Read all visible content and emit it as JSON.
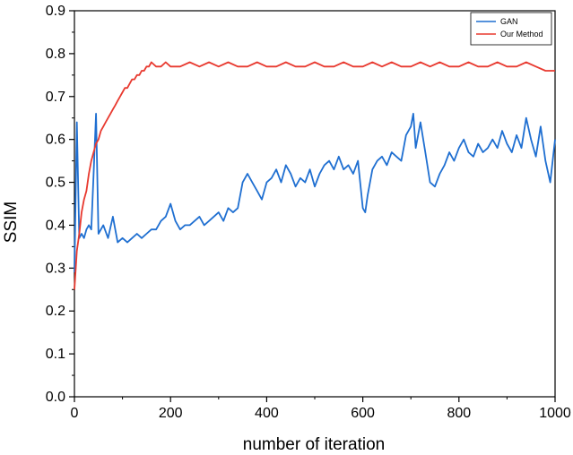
{
  "chart_data": {
    "type": "line",
    "xlabel": "number of iteration",
    "ylabel": "SSIM",
    "xlim": [
      0,
      1000
    ],
    "ylim": [
      0,
      0.9
    ],
    "x_ticks": [
      0,
      200,
      400,
      600,
      800,
      1000
    ],
    "y_ticks": [
      0.0,
      0.1,
      0.2,
      0.3,
      0.4,
      0.5,
      0.6,
      0.7,
      0.8,
      0.9
    ],
    "x_tick_labels": [
      "0",
      "200",
      "400",
      "600",
      "800",
      "1000"
    ],
    "y_tick_labels": [
      "0.0",
      "0.1",
      "0.2",
      "0.3",
      "0.4",
      "0.5",
      "0.6",
      "0.7",
      "0.8",
      "0.9"
    ],
    "grid": false,
    "legend_position": "top-right",
    "series": [
      {
        "name": "GAN",
        "color": "#1f6fd1",
        "x": [
          0,
          5,
          10,
          15,
          20,
          25,
          30,
          35,
          40,
          45,
          50,
          60,
          70,
          80,
          90,
          100,
          110,
          120,
          130,
          140,
          150,
          160,
          170,
          180,
          190,
          200,
          210,
          220,
          230,
          240,
          250,
          260,
          270,
          280,
          290,
          300,
          310,
          320,
          330,
          340,
          350,
          360,
          370,
          380,
          390,
          400,
          410,
          420,
          430,
          440,
          450,
          460,
          470,
          480,
          490,
          500,
          510,
          520,
          530,
          540,
          550,
          560,
          570,
          580,
          590,
          600,
          605,
          610,
          620,
          630,
          640,
          650,
          660,
          670,
          680,
          690,
          700,
          705,
          710,
          720,
          730,
          740,
          750,
          760,
          770,
          780,
          790,
          800,
          810,
          820,
          830,
          840,
          850,
          860,
          870,
          880,
          890,
          900,
          910,
          920,
          930,
          940,
          950,
          960,
          970,
          980,
          990,
          1000
        ],
        "values": [
          0.29,
          0.64,
          0.37,
          0.38,
          0.37,
          0.39,
          0.4,
          0.39,
          0.52,
          0.66,
          0.38,
          0.4,
          0.37,
          0.42,
          0.36,
          0.37,
          0.36,
          0.37,
          0.38,
          0.37,
          0.38,
          0.39,
          0.39,
          0.41,
          0.42,
          0.45,
          0.41,
          0.39,
          0.4,
          0.4,
          0.41,
          0.42,
          0.4,
          0.41,
          0.42,
          0.43,
          0.41,
          0.44,
          0.43,
          0.44,
          0.5,
          0.52,
          0.5,
          0.48,
          0.46,
          0.5,
          0.51,
          0.53,
          0.5,
          0.54,
          0.52,
          0.49,
          0.51,
          0.5,
          0.53,
          0.49,
          0.52,
          0.54,
          0.55,
          0.53,
          0.56,
          0.53,
          0.54,
          0.52,
          0.55,
          0.44,
          0.43,
          0.47,
          0.53,
          0.55,
          0.56,
          0.54,
          0.57,
          0.56,
          0.55,
          0.61,
          0.63,
          0.66,
          0.58,
          0.64,
          0.57,
          0.5,
          0.49,
          0.52,
          0.54,
          0.57,
          0.55,
          0.58,
          0.6,
          0.57,
          0.56,
          0.59,
          0.57,
          0.58,
          0.6,
          0.58,
          0.62,
          0.59,
          0.57,
          0.61,
          0.58,
          0.65,
          0.6,
          0.56,
          0.63,
          0.55,
          0.5,
          0.6
        ]
      },
      {
        "name": "Our Method",
        "color": "#e8392f",
        "x": [
          0,
          5,
          10,
          15,
          20,
          25,
          30,
          35,
          40,
          45,
          50,
          55,
          60,
          65,
          70,
          75,
          80,
          85,
          90,
          95,
          100,
          105,
          110,
          115,
          120,
          125,
          130,
          135,
          140,
          145,
          150,
          155,
          160,
          170,
          180,
          190,
          200,
          220,
          240,
          260,
          280,
          300,
          320,
          340,
          360,
          380,
          400,
          420,
          440,
          460,
          480,
          500,
          520,
          540,
          560,
          580,
          600,
          620,
          640,
          660,
          680,
          700,
          720,
          740,
          760,
          780,
          800,
          820,
          840,
          860,
          880,
          900,
          920,
          940,
          960,
          980,
          1000
        ],
        "values": [
          0.25,
          0.34,
          0.38,
          0.43,
          0.46,
          0.48,
          0.52,
          0.55,
          0.57,
          0.59,
          0.6,
          0.62,
          0.63,
          0.64,
          0.65,
          0.66,
          0.67,
          0.68,
          0.69,
          0.7,
          0.71,
          0.72,
          0.72,
          0.73,
          0.74,
          0.74,
          0.75,
          0.75,
          0.76,
          0.76,
          0.77,
          0.77,
          0.78,
          0.77,
          0.77,
          0.78,
          0.77,
          0.77,
          0.78,
          0.77,
          0.78,
          0.77,
          0.78,
          0.77,
          0.77,
          0.78,
          0.77,
          0.77,
          0.78,
          0.77,
          0.77,
          0.78,
          0.77,
          0.77,
          0.78,
          0.77,
          0.77,
          0.78,
          0.77,
          0.78,
          0.77,
          0.77,
          0.78,
          0.77,
          0.78,
          0.77,
          0.77,
          0.78,
          0.77,
          0.77,
          0.78,
          0.77,
          0.77,
          0.78,
          0.77,
          0.76,
          0.76
        ]
      }
    ]
  }
}
